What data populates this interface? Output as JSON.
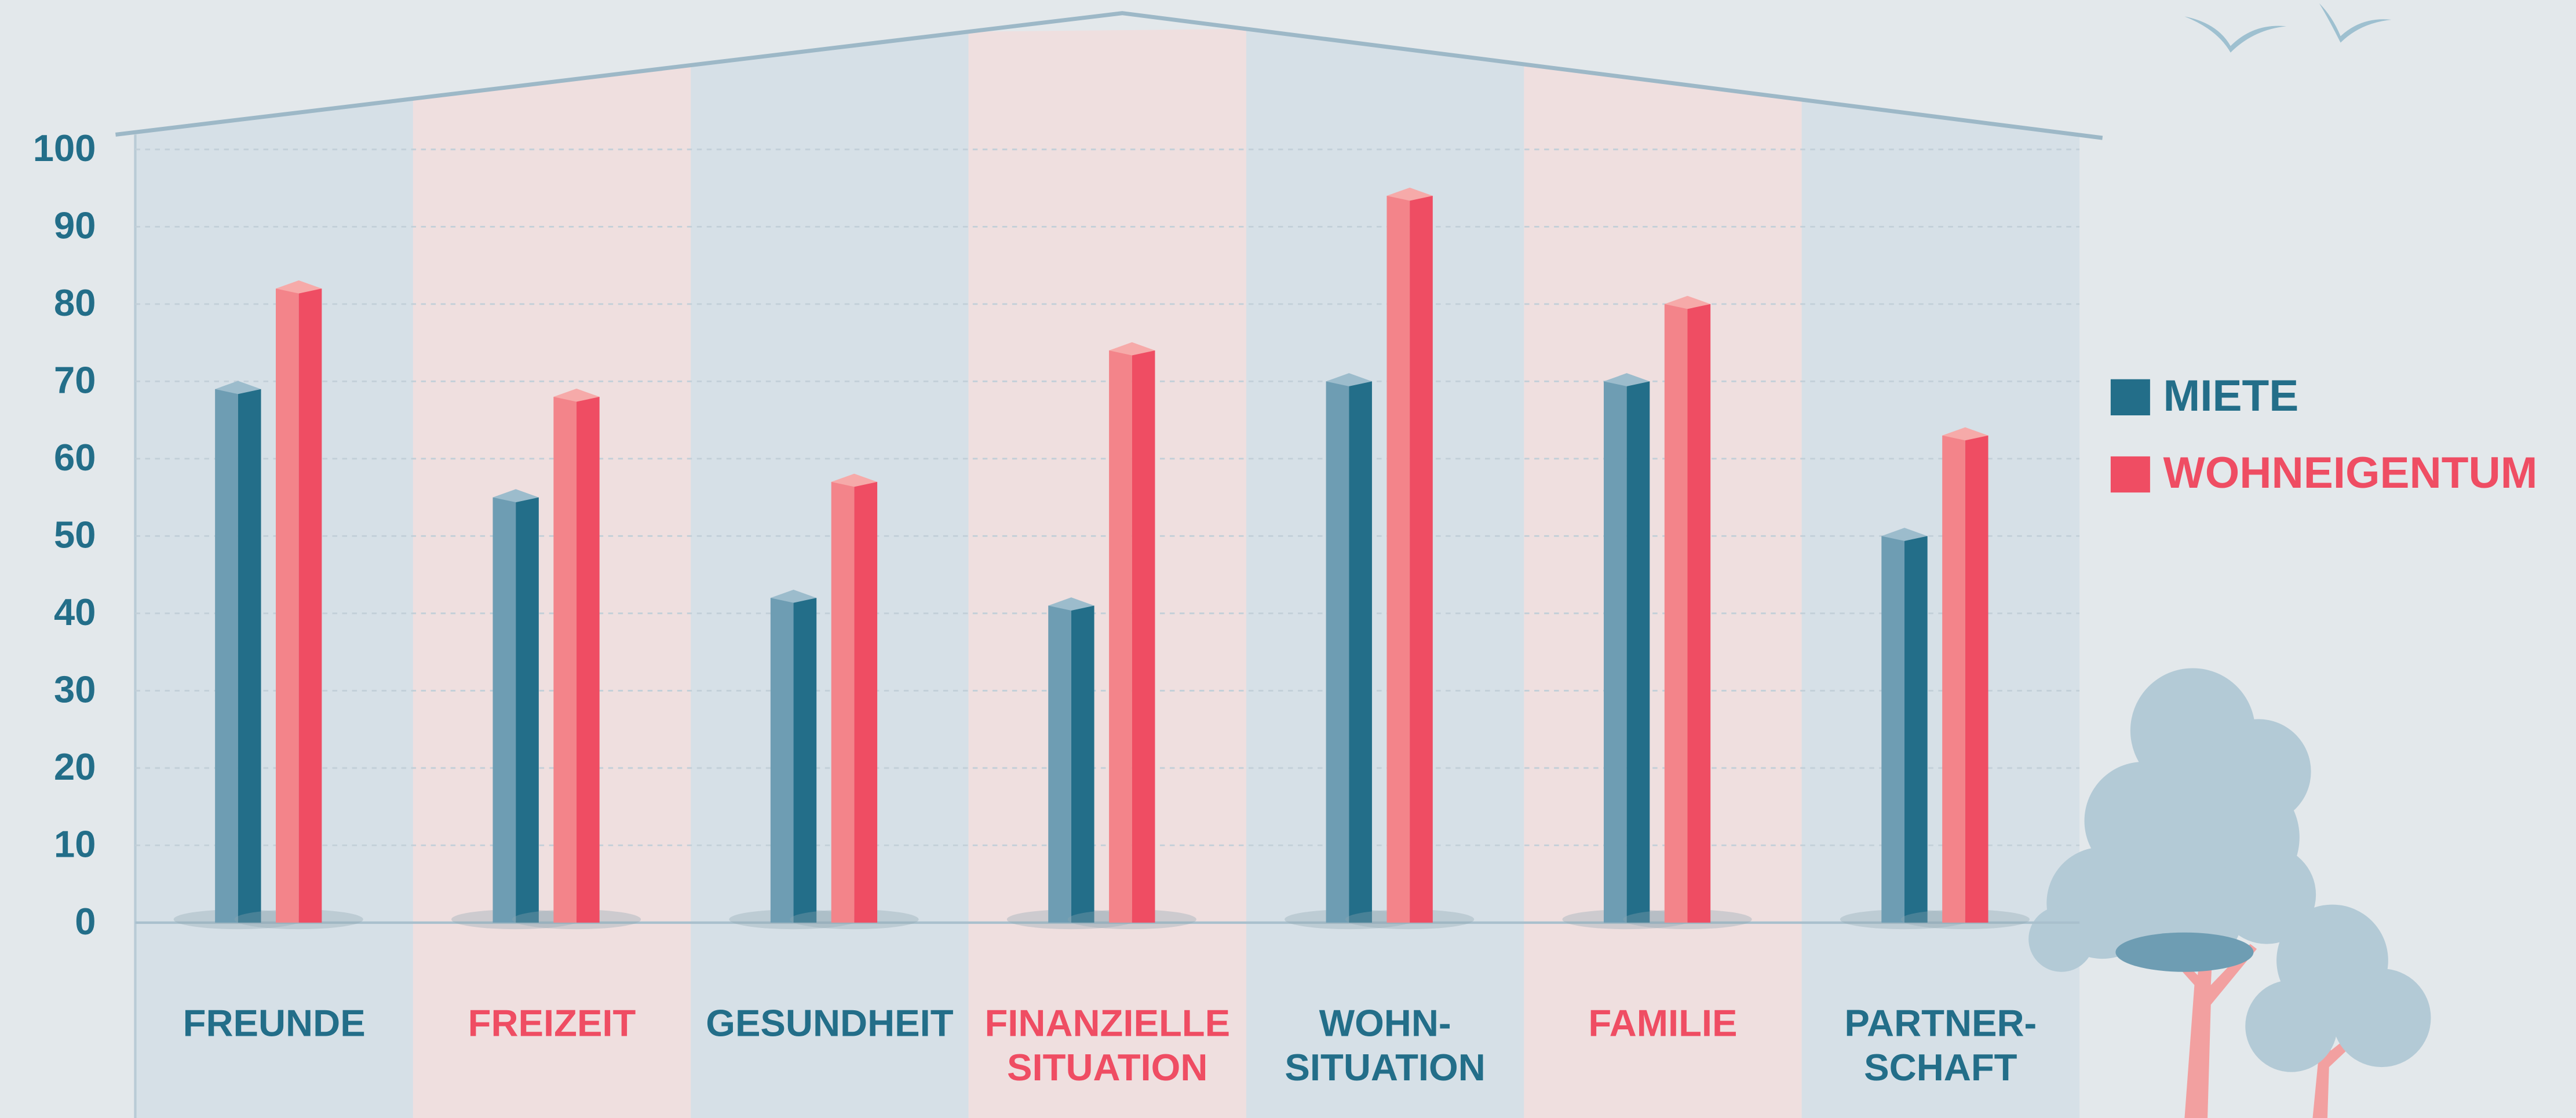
{
  "chart_data": {
    "type": "bar",
    "categories": [
      "FREUNDE",
      "FREIZEIT",
      "GESUNDHEIT",
      "FINANZIELLE\nSITUATION",
      "WOHN-\nSITUATION",
      "FAMILIE",
      "PARTNER-\nSCHAFT"
    ],
    "series": [
      {
        "name": "MIETE",
        "color": "#236e89",
        "values": [
          69,
          55,
          42,
          41,
          70,
          70,
          50
        ]
      },
      {
        "name": "WOHNEIGENTUM",
        "color": "#ef4d63",
        "values": [
          82,
          68,
          57,
          74,
          94,
          80,
          63
        ]
      }
    ],
    "ylim": [
      0,
      100
    ],
    "yticks": [
      0,
      10,
      20,
      30,
      40,
      50,
      60,
      70,
      80,
      90,
      100
    ],
    "grid": true,
    "legend": "right"
  }
}
